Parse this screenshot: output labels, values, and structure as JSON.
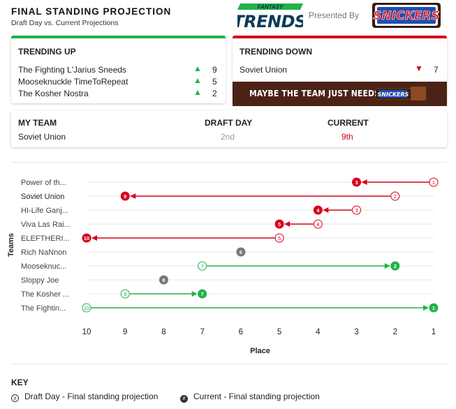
{
  "header": {
    "title": "FINAL STANDING PROJECTION",
    "subtitle": "Draft Day vs. Current Projections",
    "logo_top": "FANTASY",
    "logo_main": "TRENDS",
    "presented_by": "Presented By",
    "sponsor": "SNICKERS"
  },
  "trending_up": {
    "heading": "TRENDING UP",
    "items": [
      {
        "team": "The Fighting L'Jarius Sneeds",
        "change": "9"
      },
      {
        "team": "Mooseknuckle TimeToRepeat",
        "change": "5"
      },
      {
        "team": "The Kosher Nostra",
        "change": "2"
      }
    ]
  },
  "trending_down": {
    "heading": "TRENDING DOWN",
    "items": [
      {
        "team": "Soviet Union",
        "change": "7"
      }
    ],
    "banner_text": "MAYBE THE TEAM JUST NEEDS A",
    "banner_brand": "SNICKERS"
  },
  "my_team": {
    "col_team": "MY TEAM",
    "col_draft": "DRAFT DAY",
    "col_current": "CURRENT",
    "team": "Soviet Union",
    "draft_day": "2nd",
    "current": "9th"
  },
  "colors": {
    "up": "#22b14c",
    "down": "#d8001b",
    "neutral": "#777777",
    "grid": "#e6e6e6",
    "banner": "#4b2316"
  },
  "chart_data": {
    "type": "dumbbell",
    "ylabel": "Teams",
    "xlabel": "Place",
    "xlim": [
      10,
      1
    ],
    "x_ticks": [
      10,
      9,
      8,
      7,
      6,
      5,
      4,
      3,
      2,
      1
    ],
    "x_reversed": true,
    "rows": [
      {
        "label": "Power of th...",
        "draft_day": 1,
        "current": 3,
        "bold": false
      },
      {
        "label": "Soviet Union",
        "draft_day": 2,
        "current": 9,
        "bold": true
      },
      {
        "label": "HI-Life Ganj...",
        "draft_day": 3,
        "current": 4,
        "bold": false
      },
      {
        "label": "Viva Las Rai...",
        "draft_day": 4,
        "current": 5,
        "bold": false
      },
      {
        "label": "ELEFTHERI...",
        "draft_day": 5,
        "current": 10,
        "bold": false
      },
      {
        "label": "Rich NaNnon",
        "draft_day": 6,
        "current": 6,
        "bold": false
      },
      {
        "label": "Mooseknuc...",
        "draft_day": 7,
        "current": 2,
        "bold": false
      },
      {
        "label": "Sloppy Joe",
        "draft_day": 8,
        "current": 8,
        "bold": false
      },
      {
        "label": "The Kosher ...",
        "draft_day": 9,
        "current": 7,
        "bold": false
      },
      {
        "label": "The Fightin...",
        "draft_day": 10,
        "current": 1,
        "bold": false
      }
    ]
  },
  "key": {
    "heading": "KEY",
    "draft_symbol": "#",
    "draft_label": "Draft Day - Final standing projection",
    "current_symbol": "#",
    "current_label": "Current - Final standing projection"
  }
}
